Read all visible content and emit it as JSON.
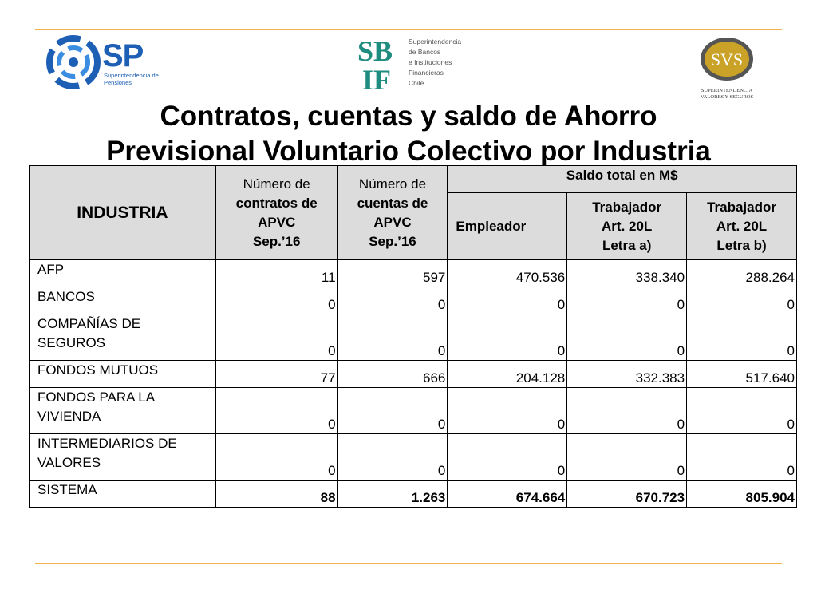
{
  "logos": {
    "sp": {
      "mark": "SP",
      "subtitle": "Superintendencia de Pensiones",
      "accent": "#1d5fb5"
    },
    "sbif": {
      "mark_top": "SB",
      "mark_bottom": "IF",
      "lines": [
        "Superintendencia",
        "de Bancos",
        "e Instituciones",
        "Financieras",
        "Chile"
      ],
      "accent": "#1e8c7e"
    },
    "svs": {
      "mark": "SVS",
      "lines": [
        "SUPERINTENDENCIA",
        "VALORES Y SEGUROS"
      ],
      "accent": "#c9a227"
    }
  },
  "title": {
    "line1": "Contratos, cuentas y saldo de Ahorro",
    "line2": "Previsional Voluntario Colectivo por Industria"
  },
  "table": {
    "headers": {
      "industria": "INDUSTRIA",
      "contratos": {
        "line1": "Número de",
        "line2": "contratos de",
        "line3": "APVC",
        "line4": "Sep.’16"
      },
      "cuentas": {
        "line1": "Número de",
        "line2": "cuentas de",
        "line3": "APVC",
        "line4": "Sep.’16"
      },
      "saldo": "Saldo total en M$",
      "empleador": "Empleador",
      "trab_a": {
        "line1": "Trabajador",
        "line2": "Art. 20L",
        "line3": "Letra a)"
      },
      "trab_b": {
        "line1": "Trabajador",
        "line2": "Art. 20L",
        "line3": "Letra b)"
      }
    },
    "rows": [
      {
        "name": "AFP",
        "contratos": "11",
        "cuentas": "597",
        "empleador": "470.536",
        "trab_a": "338.340",
        "trab_b": "288.264"
      },
      {
        "name": "BANCOS",
        "contratos": "0",
        "cuentas": "0",
        "empleador": "0",
        "trab_a": "0",
        "trab_b": "0"
      },
      {
        "name_line1": "COMPAÑÍAS DE",
        "name_line2": "SEGUROS",
        "contratos": "0",
        "cuentas": "0",
        "empleador": "0",
        "trab_a": "0",
        "trab_b": "0"
      },
      {
        "name": "FONDOS MUTUOS",
        "contratos": "77",
        "cuentas": "666",
        "empleador": "204.128",
        "trab_a": "332.383",
        "trab_b": "517.640"
      },
      {
        "name_line1": "FONDOS PARA LA",
        "name_line2": "VIVIENDA",
        "contratos": "0",
        "cuentas": "0",
        "empleador": "0",
        "trab_a": "0",
        "trab_b": "0"
      },
      {
        "name_line1": "INTERMEDIARIOS DE",
        "name_line2": "VALORES",
        "contratos": "0",
        "cuentas": "0",
        "empleador": "0",
        "trab_a": "0",
        "trab_b": "0"
      },
      {
        "name": "SISTEMA",
        "contratos": "88",
        "cuentas": "1.263",
        "empleador": "674.664",
        "trab_a": "670.723",
        "trab_b": "805.904"
      }
    ]
  },
  "colors": {
    "rule": "#f0b24a",
    "header_bg": "#dcdcdc"
  }
}
